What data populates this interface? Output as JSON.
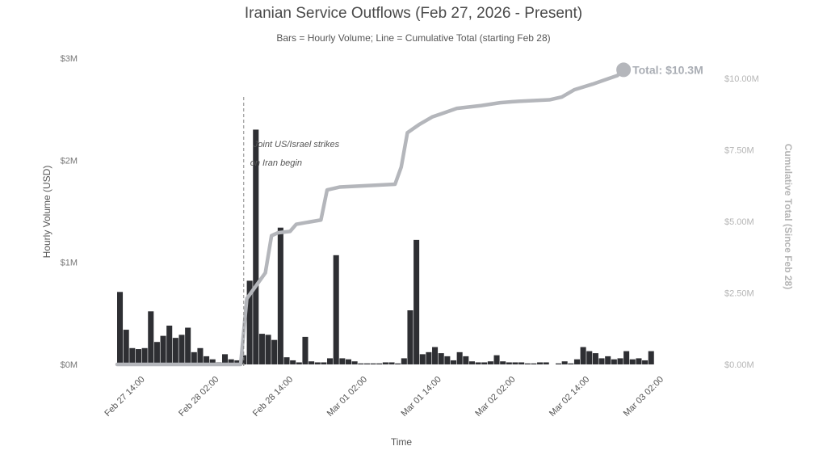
{
  "chart_data": {
    "type": "bar",
    "title": "Iranian Service Outflows (Feb 27, 2026 - Present)",
    "subtitle": "Bars = Hourly Volume; Line = Cumulative Total (starting Feb 28)",
    "xlabel": "Time",
    "ylabel": "Hourly Volume (USD)",
    "y2label": "Cumulative Total (Since Feb 28)",
    "x_ticks": [
      "Feb 27 14:00",
      "Feb 28 02:00",
      "Feb 28 14:00",
      "Mar 01 02:00",
      "Mar 01 14:00",
      "Mar 02 02:00",
      "Mar 02 14:00",
      "Mar 03 02:00"
    ],
    "y_ticks": [
      "$0M",
      "$1M",
      "$2M",
      "$3M"
    ],
    "y2_ticks": [
      "$0.00M",
      "$2.50M",
      "$5.00M",
      "$7.50M",
      "$10.00M"
    ],
    "ylim": [
      0,
      3000000
    ],
    "y2lim": [
      0,
      10500000
    ],
    "x_start": "2026-02-27T10:00",
    "x_end": "2026-03-03T02:00",
    "bar_start": "2026-02-27T10:00",
    "series": [
      {
        "name": "Hourly Volume",
        "kind": "bars",
        "color": "#2e2f33",
        "values": [
          710000,
          340000,
          160000,
          150000,
          160000,
          520000,
          220000,
          280000,
          380000,
          260000,
          290000,
          360000,
          120000,
          160000,
          80000,
          50000,
          20000,
          100000,
          50000,
          40000,
          90000,
          820000,
          2300000,
          300000,
          290000,
          240000,
          1340000,
          70000,
          40000,
          20000,
          270000,
          30000,
          20000,
          20000,
          60000,
          1070000,
          60000,
          50000,
          30000,
          10000,
          10000,
          10000,
          10000,
          20000,
          20000,
          10000,
          60000,
          530000,
          1220000,
          100000,
          120000,
          170000,
          110000,
          80000,
          40000,
          120000,
          80000,
          30000,
          20000,
          20000,
          30000,
          90000,
          30000,
          20000,
          20000,
          20000,
          10000,
          10000,
          20000,
          20000,
          0,
          10000,
          30000,
          10000,
          50000,
          170000,
          130000,
          110000,
          60000,
          80000,
          50000,
          60000,
          130000,
          50000,
          60000,
          40000,
          130000
        ]
      },
      {
        "name": "Cumulative Total",
        "kind": "line",
        "color": "#b4b6bb",
        "points": [
          [
            "2026-02-27T10:00",
            0
          ],
          [
            "2026-02-28T06:00",
            0
          ],
          [
            "2026-02-28T07:00",
            2300000
          ],
          [
            "2026-02-28T10:00",
            3200000
          ],
          [
            "2026-02-28T11:00",
            4500000
          ],
          [
            "2026-02-28T12:00",
            4600000
          ],
          [
            "2026-02-28T14:00",
            4650000
          ],
          [
            "2026-02-28T15:00",
            4900000
          ],
          [
            "2026-02-28T19:00",
            5050000
          ],
          [
            "2026-02-28T20:00",
            6100000
          ],
          [
            "2026-02-28T22:00",
            6200000
          ],
          [
            "2026-03-01T07:00",
            6300000
          ],
          [
            "2026-03-01T08:00",
            6900000
          ],
          [
            "2026-03-01T09:00",
            8100000
          ],
          [
            "2026-03-01T11:00",
            8400000
          ],
          [
            "2026-03-01T13:00",
            8650000
          ],
          [
            "2026-03-01T15:00",
            8800000
          ],
          [
            "2026-03-01T17:00",
            8950000
          ],
          [
            "2026-03-01T21:00",
            9050000
          ],
          [
            "2026-03-02T00:00",
            9150000
          ],
          [
            "2026-03-02T03:00",
            9200000
          ],
          [
            "2026-03-02T08:00",
            9250000
          ],
          [
            "2026-03-02T10:00",
            9350000
          ],
          [
            "2026-03-02T12:00",
            9600000
          ],
          [
            "2026-03-02T15:00",
            9800000
          ],
          [
            "2026-03-02T17:00",
            9950000
          ],
          [
            "2026-03-02T19:00",
            10100000
          ],
          [
            "2026-03-02T20:00",
            10300000
          ]
        ]
      }
    ],
    "annotations": [
      {
        "text_line1": "Joint US/Israel strikes",
        "text_line2": "on Iran begin",
        "x": "2026-02-28T07:00",
        "style": "dashed-vertical-line"
      },
      {
        "text": "Total: $10.3M",
        "x": "2026-03-02T20:00",
        "y2": 10300000
      }
    ],
    "grid": false,
    "legend": "none"
  }
}
